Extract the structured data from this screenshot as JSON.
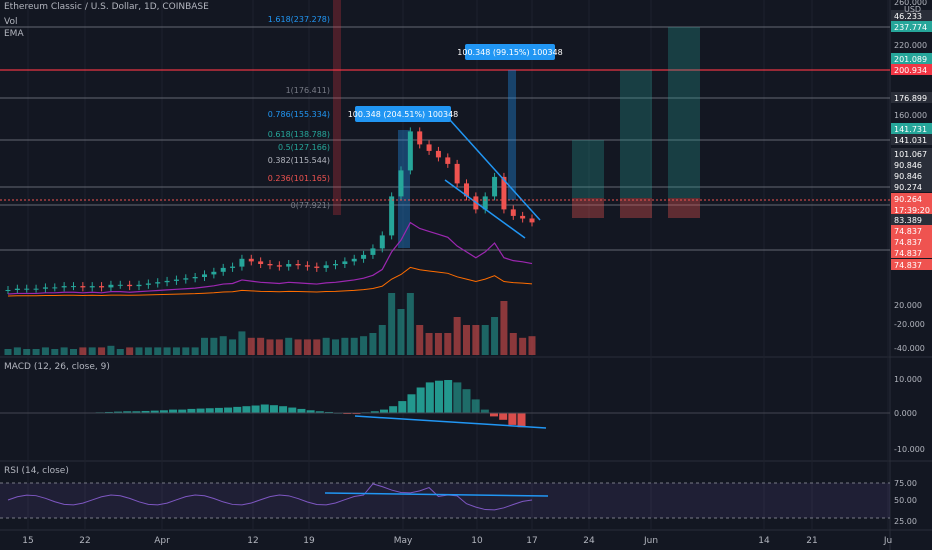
{
  "header": {
    "title": "Ethereum Classic / U.S. Dollar, 1D, COINBASE",
    "vol": "Vol",
    "ema": "EMA"
  },
  "macd_title": "MACD (12, 26, close, 9)",
  "rsi_title": "RSI (14, close)",
  "colors": {
    "bg": "#131722",
    "grid": "#2a2e39",
    "up": "#26a69a",
    "down": "#ef5350",
    "blue": "#2196f3",
    "red_line": "#f23645",
    "ema_purple": "#9c27b0",
    "ema_orange": "#ff6d00",
    "rsi": "#7e57c2",
    "text": "#b2b5be"
  },
  "chart_data": [
    {
      "type": "candlestick",
      "title": "Ethereum Classic / U.S. Dollar, 1D, COINBASE",
      "x_tick_labels": [
        "15",
        "22",
        "Apr",
        "12",
        "19",
        "May",
        "10",
        "17",
        "24",
        "Jun",
        "14",
        "21",
        "Ju"
      ],
      "y_tick_labels": [
        "260.000",
        "220.000",
        "160.000",
        "20.000",
        "-20.000",
        "-40.000"
      ],
      "y_axis_unit": "USD",
      "price_tags": [
        {
          "value": "237.774",
          "color": "#26a69a"
        },
        {
          "value": "201.089",
          "color": "#26a69a"
        },
        {
          "value": "200.934",
          "color": "#f23645"
        },
        {
          "value": "176.899",
          "color": "#2a2e39"
        },
        {
          "value": "141.731",
          "color": "#26a69a"
        },
        {
          "value": "141.031",
          "color": "#2a2e39"
        },
        {
          "value": "101.067",
          "color": "#2a2e39"
        },
        {
          "value": "90.846",
          "color": "#2a2e39"
        },
        {
          "value": "90.846",
          "color": "#2a2e39"
        },
        {
          "value": "90.274",
          "color": "#2a2e39"
        },
        {
          "value": "90.264",
          "color": "#ef5350"
        },
        {
          "value": "17:39:20",
          "color": "#ef5350"
        },
        {
          "value": "83.389",
          "color": "#2a2e39"
        },
        {
          "value": "74.837",
          "color": "#ef5350"
        },
        {
          "value": "74.837",
          "color": "#ef5350"
        },
        {
          "value": "74.837",
          "color": "#ef5350"
        },
        {
          "value": "74.837",
          "color": "#ef5350"
        },
        {
          "value": "46.233",
          "color": "#2a2e39"
        }
      ],
      "fib_levels": [
        {
          "label": "1.618(237.278)",
          "color": "#2196f3"
        },
        {
          "label": "1(176.411)",
          "color": "#787b86"
        },
        {
          "label": "0.786(155.334)",
          "color": "#2196f3"
        },
        {
          "label": "0.618(138.788)",
          "color": "#26a69a"
        },
        {
          "label": "0.5(127.166)",
          "color": "#26a69a"
        },
        {
          "label": "0.382(115.544)",
          "color": "#b2b5be"
        },
        {
          "label": "0.236(101.165)",
          "color": "#ef5350"
        },
        {
          "label": "0(77.921)",
          "color": "#787b86"
        }
      ],
      "measure_labels": [
        "100.348 (204.51%) 100348",
        "100.348 (99.15%) 100348"
      ],
      "candles_close": [
        38,
        39,
        39,
        39,
        40,
        40,
        41,
        41,
        40,
        41,
        40,
        42,
        42,
        41,
        42,
        43,
        44,
        45,
        46,
        47,
        48,
        50,
        52,
        55,
        56,
        62,
        60,
        58,
        57,
        56,
        58,
        57,
        56,
        55,
        57,
        58,
        60,
        62,
        65,
        70,
        80,
        110,
        130,
        160,
        150,
        145,
        140,
        135,
        120,
        110,
        100,
        110,
        125,
        100,
        95,
        93,
        90
      ]
    },
    {
      "type": "bar",
      "title": "MACD (12, 26, close, 9)",
      "y_tick_labels": [
        "10.000",
        "0.000",
        "-10.000"
      ],
      "values": [
        0.2,
        0.3,
        0.4,
        0.5,
        0.5,
        0.6,
        0.7,
        0.8,
        1,
        1,
        1.2,
        1.3,
        1.4,
        1.5,
        1.6,
        1.8,
        2,
        2.2,
        2.5,
        2.3,
        2,
        1.6,
        1.2,
        0.8,
        0.5,
        0.3,
        0.1,
        -0.2,
        -0.3,
        0.2,
        0.5,
        1,
        2,
        3.5,
        5.5,
        7.5,
        9,
        9.5,
        9.7,
        9,
        7,
        4,
        1,
        -1,
        -2,
        -3.5,
        -4.2
      ]
    },
    {
      "type": "line",
      "title": "RSI (14, close)",
      "y_tick_labels": [
        "75.00",
        "50.00",
        "25.00"
      ]
    }
  ]
}
